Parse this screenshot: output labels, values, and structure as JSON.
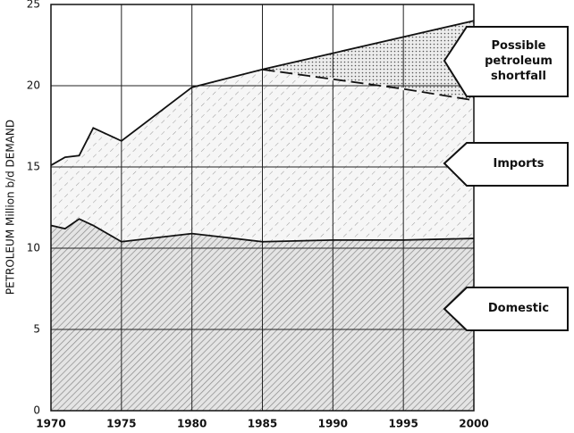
{
  "chart_data": {
    "type": "area",
    "y_label": "PETROLEUM Million b/d DEMAND",
    "x": [
      1970,
      1971,
      1972,
      1973,
      1974,
      1975,
      1980,
      1985,
      1990,
      1995,
      2000
    ],
    "series": [
      {
        "name": "Domestic",
        "color": "#9a9a9a",
        "values": [
          11.4,
          11.2,
          11.8,
          11.4,
          10.9,
          10.4,
          10.9,
          10.4,
          10.5,
          10.5,
          10.6
        ]
      },
      {
        "name": "Imports",
        "color": "#c8c8c8",
        "values": [
          3.7,
          4.4,
          3.9,
          6.0,
          6.1,
          6.2,
          9.0,
          10.6,
          9.9,
          9.3,
          8.5
        ]
      },
      {
        "name": "Possible petroleum shortfall",
        "color": "#888888",
        "values": [
          null,
          null,
          null,
          null,
          null,
          null,
          null,
          0,
          1.6,
          3.2,
          4.9
        ]
      }
    ],
    "xlim": [
      1970,
      2000
    ],
    "xticks": [
      1970,
      1975,
      1980,
      1985,
      1990,
      1995,
      2000
    ],
    "ylim": [
      0,
      25
    ],
    "yticks": [
      0,
      5,
      10,
      15,
      20,
      25
    ],
    "grid": true
  }
}
